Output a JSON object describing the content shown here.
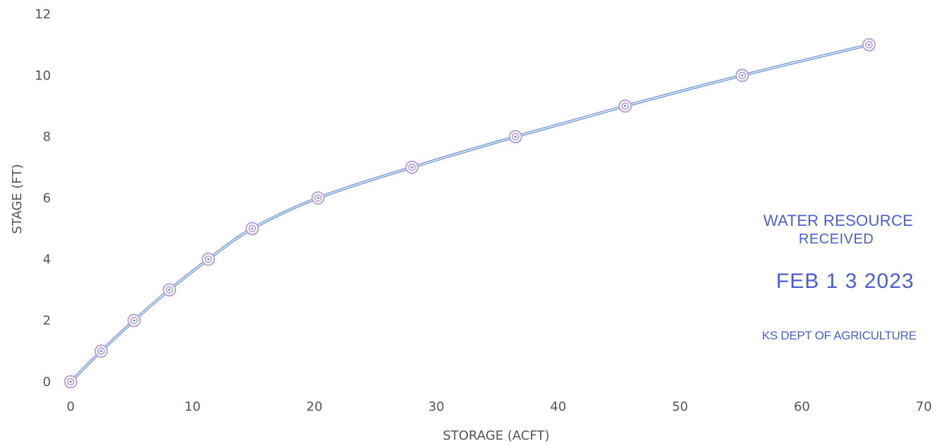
{
  "chart_data": {
    "type": "line",
    "title": "",
    "xlabel": "STORAGE (ACFT)",
    "ylabel": "STAGE (FT)",
    "xlim": [
      0,
      70
    ],
    "ylim": [
      0,
      12
    ],
    "xticks": [
      0,
      10,
      20,
      30,
      40,
      50,
      60,
      70
    ],
    "yticks": [
      0,
      2,
      4,
      6,
      8,
      10,
      12
    ],
    "grid": false,
    "legend": "none",
    "series": [
      {
        "x": [
          0,
          2.5,
          5.2,
          8.1,
          11.3,
          14.9,
          20.3,
          28.0,
          36.5,
          45.5,
          55.1,
          65.5
        ],
        "y": [
          0,
          1,
          2,
          3,
          4,
          5,
          6,
          7,
          8,
          9,
          10,
          11
        ],
        "line_color": "#6f96d6",
        "marker_color": "#b79ad6",
        "marker": "double-circle"
      }
    ]
  },
  "stamp": {
    "title": "WATER RESOURCE",
    "received": "RECEIVED",
    "date": "FEB 1 3 2023",
    "dept": "KS DEPT OF AGRICULTURE",
    "color": "#4a5fd6"
  }
}
